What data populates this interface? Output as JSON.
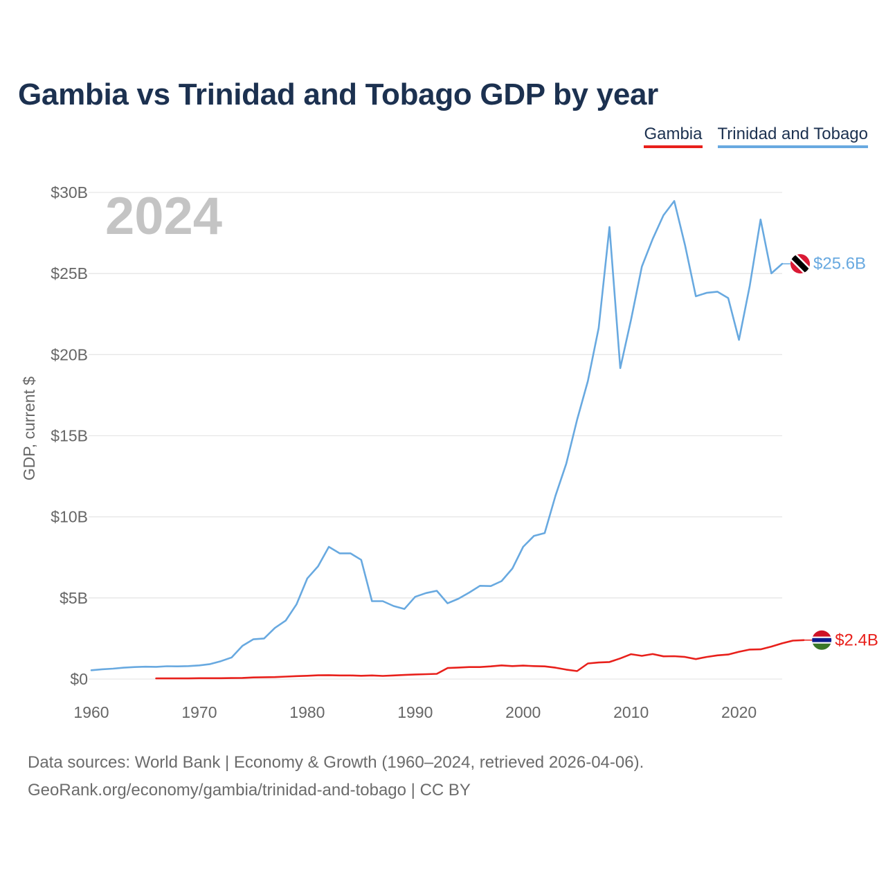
{
  "title": "Gambia vs Trinidad and Tobago GDP by year",
  "footer": {
    "line1": "Data sources: World Bank | Economy & Growth (1960–2024, retrieved 2026-04-06).",
    "line2": "GeoRank.org/economy/gambia/trinidad-and-tobago | CC BY"
  },
  "colors": {
    "gambia": "#e8201b",
    "trinidad": "#68a9e0",
    "title": "#1c3150",
    "axis_text": "#666666",
    "grid": "#e6e6e6",
    "year_watermark": "#c4c4c4"
  },
  "chart_data": {
    "type": "line",
    "title": "Gambia vs Trinidad and Tobago GDP by year",
    "xlabel": "",
    "ylabel": "GDP, current $",
    "xlim": [
      1960,
      2024
    ],
    "ylim": [
      0,
      30
    ],
    "y_unit": "billions of current US$",
    "year_label": "2024",
    "x_ticks": [
      "1960",
      "1970",
      "1980",
      "1990",
      "2000",
      "2010",
      "2020"
    ],
    "x_tick_values": [
      1960,
      1970,
      1980,
      1990,
      2000,
      2010,
      2020
    ],
    "y_ticks": [
      "$0",
      "$5B",
      "$10B",
      "$15B",
      "$20B",
      "$25B",
      "$30B"
    ],
    "y_tick_values": [
      0,
      5,
      10,
      15,
      20,
      25,
      30
    ],
    "grid": true,
    "legend_position": "top-right",
    "series": [
      {
        "name": "Gambia",
        "key": "gambia",
        "end_label": "$2.4B",
        "flag": "gambia",
        "start_year": 1966,
        "values": [
          0.04,
          0.04,
          0.04,
          0.04,
          0.05,
          0.05,
          0.05,
          0.06,
          0.07,
          0.1,
          0.11,
          0.12,
          0.15,
          0.18,
          0.2,
          0.23,
          0.24,
          0.22,
          0.22,
          0.2,
          0.22,
          0.19,
          0.22,
          0.25,
          0.28,
          0.3,
          0.32,
          0.68,
          0.71,
          0.74,
          0.74,
          0.78,
          0.84,
          0.8,
          0.83,
          0.8,
          0.78,
          0.7,
          0.58,
          0.49,
          0.96,
          1.02,
          1.05,
          1.27,
          1.53,
          1.43,
          1.54,
          1.4,
          1.41,
          1.36,
          1.23,
          1.36,
          1.46,
          1.51,
          1.68,
          1.82,
          1.83,
          2.0,
          2.2,
          2.37,
          2.4
        ]
      },
      {
        "name": "Trinidad and Tobago",
        "key": "trinidad",
        "end_label": "$25.6B",
        "flag": "trinidad",
        "start_year": 1960,
        "values": [
          0.54,
          0.6,
          0.64,
          0.7,
          0.74,
          0.76,
          0.75,
          0.79,
          0.78,
          0.8,
          0.84,
          0.92,
          1.1,
          1.33,
          2.05,
          2.45,
          2.5,
          3.15,
          3.6,
          4.6,
          6.2,
          6.95,
          8.15,
          7.75,
          7.75,
          7.35,
          4.8,
          4.8,
          4.5,
          4.32,
          5.07,
          5.3,
          5.44,
          4.67,
          4.95,
          5.33,
          5.75,
          5.73,
          6.04,
          6.81,
          8.15,
          8.82,
          9.0,
          11.3,
          13.28,
          15.98,
          18.37,
          21.64,
          27.87,
          19.17,
          22.16,
          25.43,
          27.13,
          28.59,
          29.47,
          26.74,
          23.6,
          23.81,
          23.88,
          23.49,
          20.91,
          24.25,
          28.33,
          25.01,
          25.6
        ]
      }
    ]
  }
}
